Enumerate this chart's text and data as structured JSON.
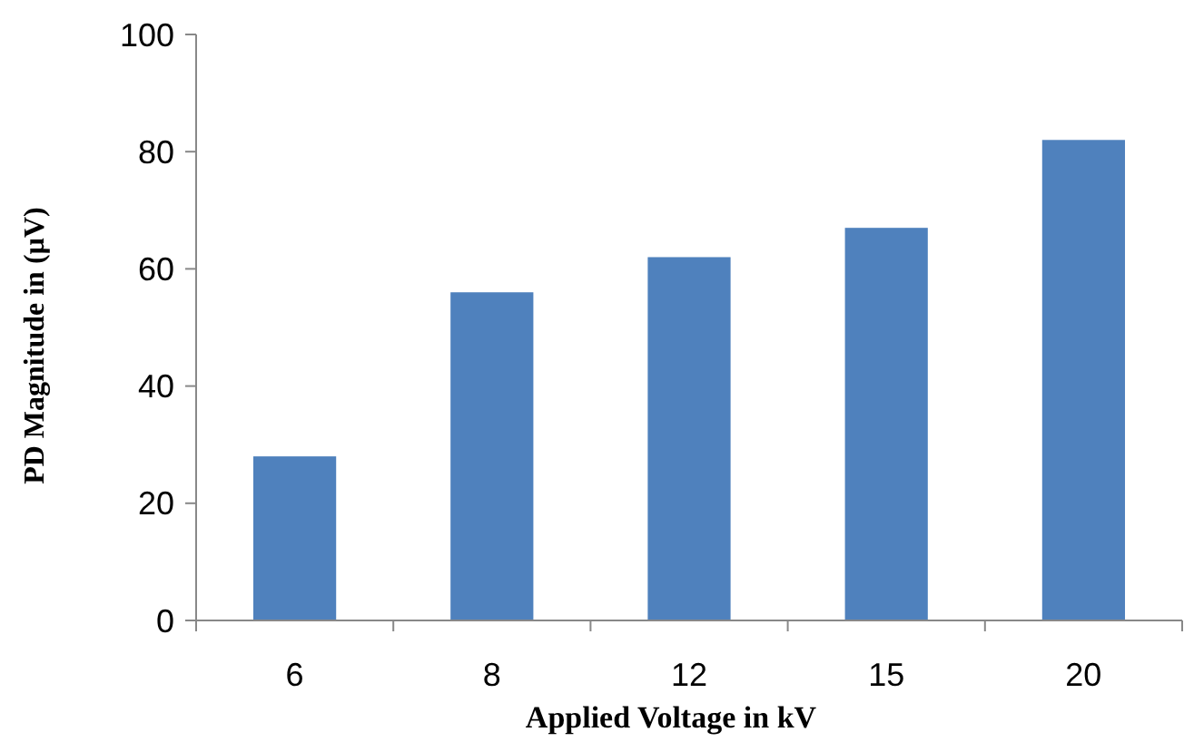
{
  "chart_data": {
    "type": "bar",
    "xlabel": "Applied Voltage in kV",
    "ylabel": "PD Magnitude in (µV)",
    "categories": [
      "6",
      "8",
      "12",
      "15",
      "20"
    ],
    "values": [
      28,
      56,
      62,
      67,
      82
    ],
    "color": "#4f81bd",
    "ylim": [
      0,
      100
    ],
    "yticks": [
      0,
      20,
      40,
      60,
      80,
      100
    ],
    "grid": false
  }
}
